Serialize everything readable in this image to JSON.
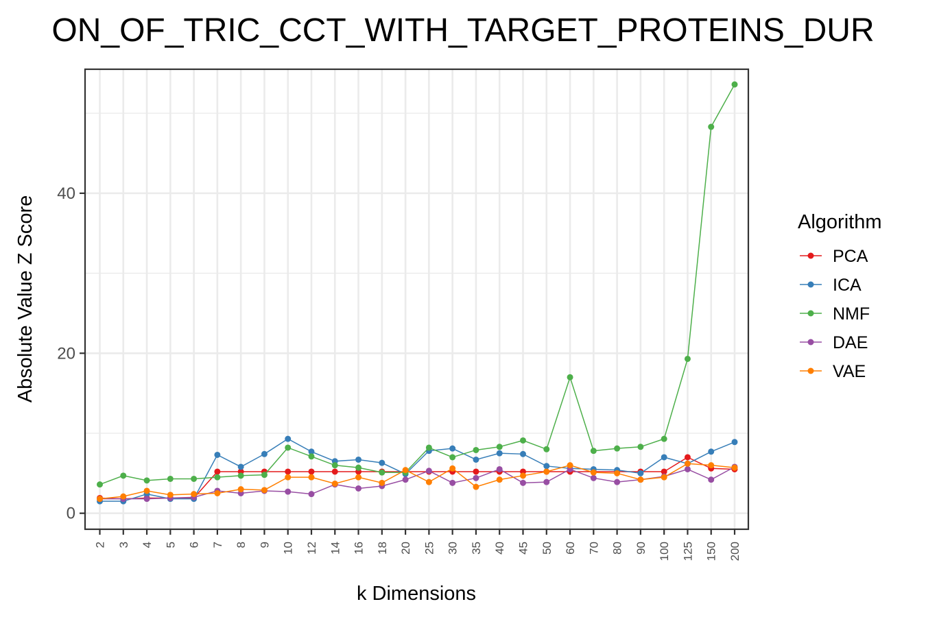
{
  "chart_data": {
    "type": "line",
    "title": "ON_OF_TRIC_CCT_WITH_TARGET_PROTEINS_DUR",
    "xlabel": "k Dimensions",
    "ylabel": "Absolute Value Z Score",
    "ylim": [
      -2,
      55.5
    ],
    "yticks": [
      0,
      20,
      40
    ],
    "grid": true,
    "legend_title": "Algorithm",
    "legend_position": "right",
    "categories": [
      "2",
      "3",
      "4",
      "5",
      "6",
      "7",
      "8",
      "9",
      "10",
      "12",
      "14",
      "16",
      "18",
      "20",
      "25",
      "30",
      "35",
      "40",
      "45",
      "50",
      "60",
      "70",
      "80",
      "90",
      "100",
      "125",
      "150",
      "200"
    ],
    "series": [
      {
        "name": "PCA",
        "color": "#e41a1c",
        "values": [
          1.9,
          1.8,
          1.9,
          1.9,
          1.9,
          5.2,
          5.2,
          5.2,
          5.2,
          5.2,
          5.2,
          5.2,
          5.2,
          5.2,
          5.2,
          5.2,
          5.2,
          5.2,
          5.2,
          5.2,
          5.2,
          5.2,
          5.2,
          5.2,
          5.2,
          7.0,
          5.6,
          5.5
        ]
      },
      {
        "name": "ICA",
        "color": "#377eb8",
        "values": [
          1.5,
          1.5,
          2.4,
          1.8,
          1.8,
          7.3,
          5.8,
          7.4,
          9.3,
          7.7,
          6.5,
          6.7,
          6.3,
          4.9,
          7.8,
          8.1,
          6.7,
          7.5,
          7.4,
          5.9,
          5.6,
          5.5,
          5.4,
          5.0,
          7.0,
          6.2,
          7.7,
          8.9
        ]
      },
      {
        "name": "NMF",
        "color": "#4daf4a",
        "values": [
          3.6,
          4.7,
          4.1,
          4.3,
          4.3,
          4.5,
          4.7,
          4.8,
          8.2,
          7.1,
          6.0,
          5.7,
          5.1,
          5.1,
          8.2,
          7.0,
          7.9,
          8.3,
          9.1,
          8.0,
          17.0,
          7.8,
          8.1,
          8.3,
          9.3,
          19.3,
          48.3,
          53.6
        ]
      },
      {
        "name": "DAE",
        "color": "#984ea3",
        "values": [
          1.8,
          1.8,
          1.8,
          1.9,
          2.0,
          2.8,
          2.5,
          2.8,
          2.7,
          2.4,
          3.6,
          3.1,
          3.4,
          4.2,
          5.3,
          3.8,
          4.4,
          5.5,
          3.8,
          3.9,
          5.5,
          4.4,
          3.9,
          4.2,
          4.6,
          5.5,
          4.2,
          5.8
        ]
      },
      {
        "name": "VAE",
        "color": "#ff7f00",
        "values": [
          1.8,
          2.1,
          2.8,
          2.3,
          2.4,
          2.5,
          3.0,
          2.9,
          4.5,
          4.5,
          3.7,
          4.5,
          3.8,
          5.4,
          3.9,
          5.6,
          3.3,
          4.2,
          4.7,
          5.2,
          6.0,
          5.1,
          5.0,
          4.2,
          4.5,
          6.2,
          6.0,
          5.7
        ]
      }
    ]
  }
}
